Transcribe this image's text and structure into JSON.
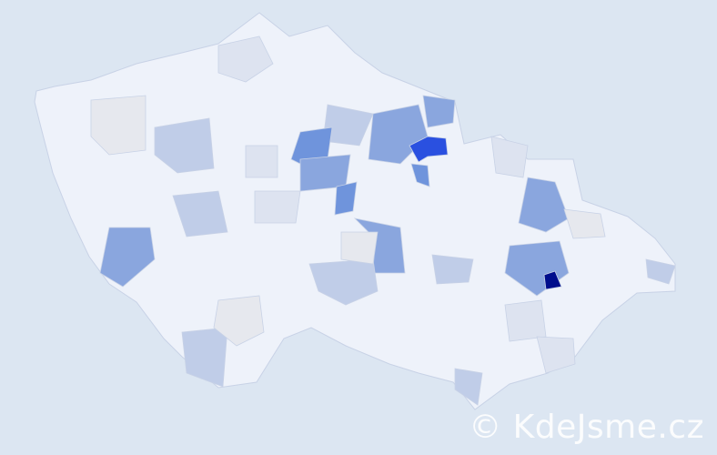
{
  "map": {
    "colors": {
      "background": "#dce6f2",
      "base": "#eef2fa",
      "border": "#c8d2e6",
      "light": "#dde3f0",
      "grey": "#e6e8ee",
      "pale_blue": "#c0cde8",
      "mid_blue": "#8aa6de",
      "blue": "#6f94dc",
      "bright_blue": "#2a50e0",
      "navy": "#000d8c"
    }
  },
  "watermark": {
    "text": "© KdeJsme.cz"
  }
}
